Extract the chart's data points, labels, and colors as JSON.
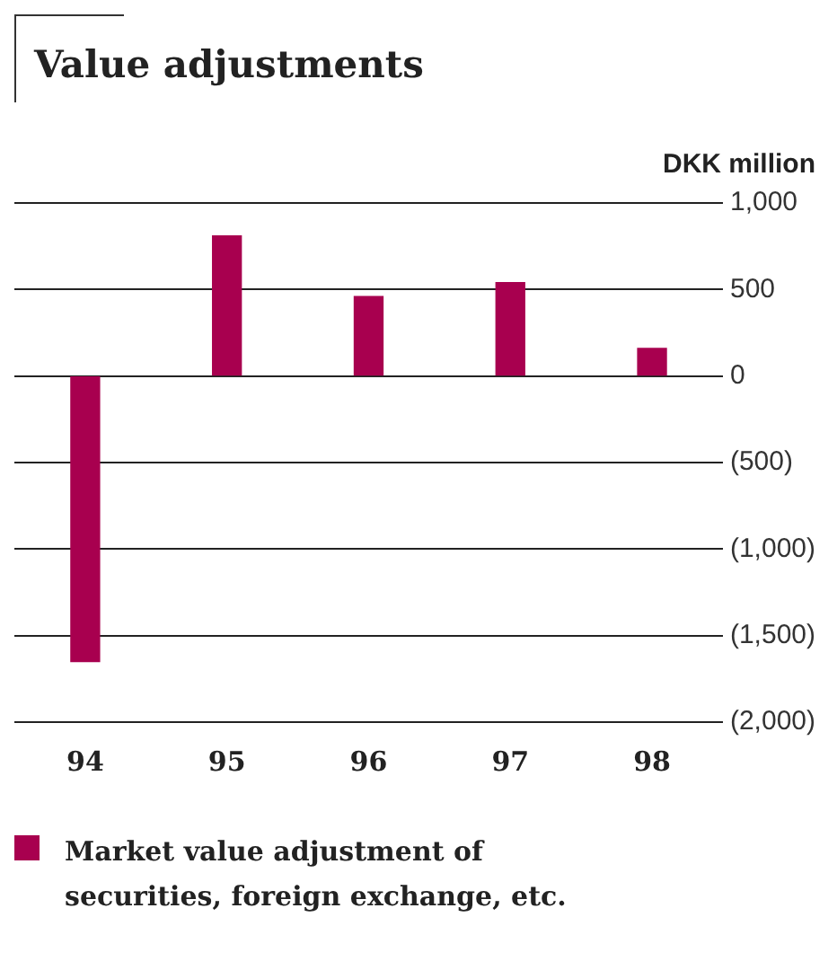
{
  "chart_data": {
    "type": "bar",
    "title": "Value adjustments",
    "ylabel": "DKK million",
    "categories": [
      "94",
      "95",
      "96",
      "97",
      "98"
    ],
    "series": [
      {
        "name": "Market value adjustment of securities, foreign exchange, etc.",
        "color": "#a8004f",
        "values": [
          -1650,
          810,
          460,
          540,
          160
        ]
      }
    ],
    "ylim": [
      -2000,
      1000
    ],
    "yticks": [
      {
        "value": 1000,
        "label": "1,000"
      },
      {
        "value": 500,
        "label": "500"
      },
      {
        "value": 0,
        "label": "0"
      },
      {
        "value": -500,
        "label": "(500)"
      },
      {
        "value": -1000,
        "label": "(1,000)"
      },
      {
        "value": -1500,
        "label": "(1,500)"
      },
      {
        "value": -2000,
        "label": "(2,000)"
      }
    ],
    "grid": "y",
    "legend": "bottom"
  }
}
